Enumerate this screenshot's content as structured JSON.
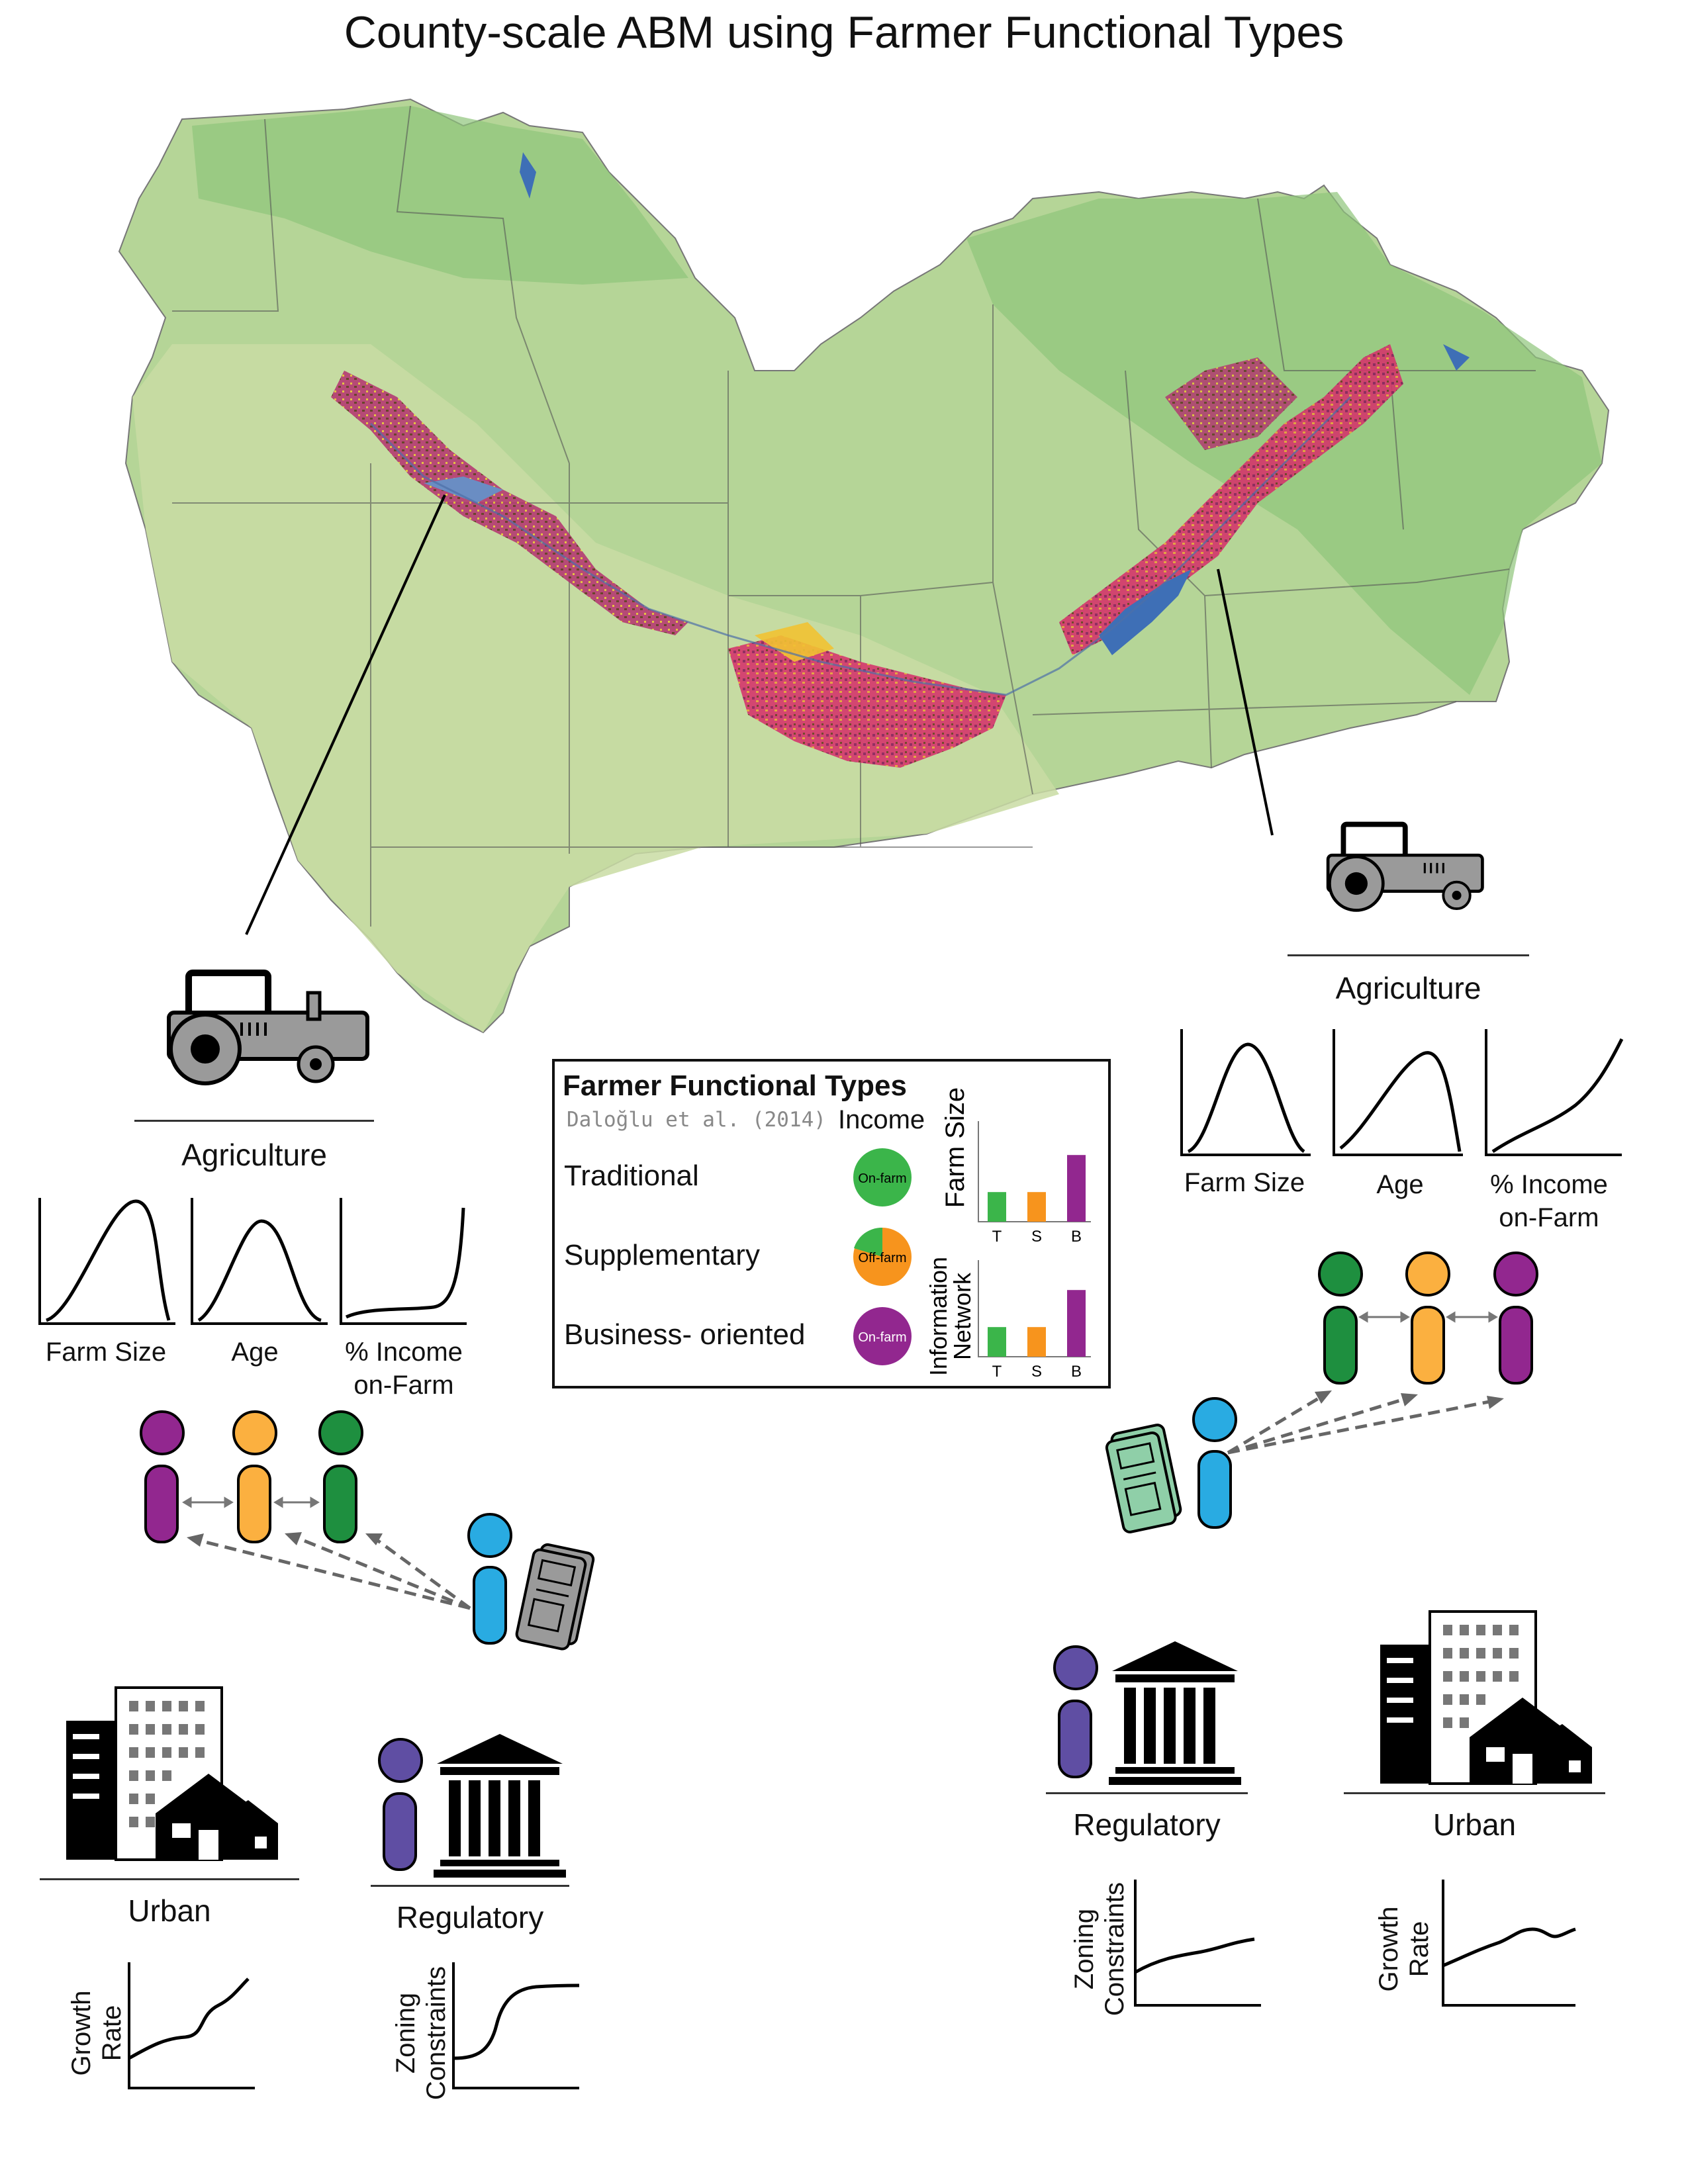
{
  "title": "County-scale ABM using Farmer Functional Types",
  "legend": {
    "title": "Farmer Functional Types",
    "citation": "Daloğlu et al. (2014)",
    "income_header": "Income",
    "types": [
      {
        "label": "Traditional",
        "pie_label": "On-farm",
        "color": "#3bb54a"
      },
      {
        "label": "Supplementary",
        "pie_label": "Off-farm",
        "color": "#f7941d"
      },
      {
        "label": "Business- oriented",
        "pie_label": "On-farm",
        "color": "#92278f"
      }
    ],
    "bar_charts": [
      {
        "ylabel": "Farm Size",
        "categories": [
          "T",
          "S",
          "B"
        ],
        "values": [
          0.32,
          0.32,
          0.72
        ]
      },
      {
        "ylabel_line1": "Information",
        "ylabel_line2": "Network",
        "categories": [
          "T",
          "S",
          "B"
        ],
        "values": [
          0.32,
          0.32,
          0.72
        ]
      }
    ]
  },
  "left": {
    "agriculture_label": "Agriculture",
    "plots": [
      {
        "line1": "Farm Size",
        "line2": ""
      },
      {
        "line1": "Age",
        "line2": ""
      },
      {
        "line1": "% Income",
        "line2": "on-Farm"
      }
    ],
    "urban_label": "Urban",
    "regulatory_label": "Regulatory",
    "growth_axis": {
      "line1": "Growth",
      "line2": "Rate"
    },
    "zoning_axis": {
      "line1": "Zoning",
      "line2": "Constraints"
    }
  },
  "right": {
    "agriculture_label": "Agriculture",
    "plots": [
      {
        "line1": "Farm Size",
        "line2": ""
      },
      {
        "line1": "Age",
        "line2": ""
      },
      {
        "line1": "% Income",
        "line2": "on-Farm"
      }
    ],
    "regulatory_label": "Regulatory",
    "urban_label": "Urban",
    "zoning_axis": {
      "line1": "Zoning",
      "line2": "Constraints"
    },
    "growth_axis": {
      "line1": "Growth",
      "line2": "Rate"
    }
  },
  "colors": {
    "traditional": "#3bb54a",
    "supplementary": "#f7941d",
    "business": "#92278f",
    "info_agent": "#29abe2",
    "regulator": "#5f4ea3",
    "map_base": "#a8cf8a"
  }
}
